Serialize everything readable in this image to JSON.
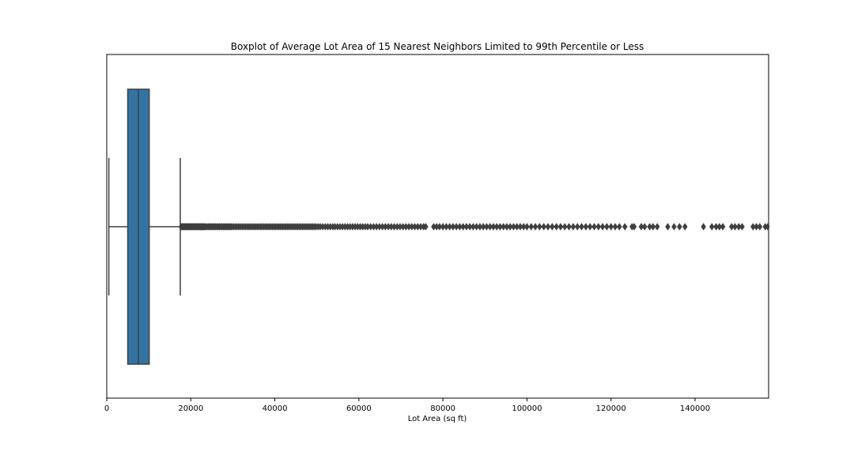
{
  "chart_data": {
    "type": "boxplot",
    "orientation": "horizontal",
    "title": "Boxplot of Average Lot Area of 15 Nearest Neighbors Limited to 99th Percentile or Less",
    "xlabel": "Lot Area (sq ft)",
    "ylabel": "",
    "xlim": [
      0,
      157500
    ],
    "xticks": [
      0,
      20000,
      40000,
      60000,
      80000,
      100000,
      120000,
      140000
    ],
    "xtick_labels": [
      "0",
      "20000",
      "40000",
      "60000",
      "80000",
      "100000",
      "120000",
      "140000"
    ],
    "grid": false,
    "box_color": "#3274a1",
    "line_color": "#3f3f3f",
    "stats": {
      "whisker_low": 500,
      "q1": 5000,
      "median": 7500,
      "q3": 10100,
      "whisker_high": 17500
    },
    "outliers": [
      17700,
      17900,
      18100,
      18300,
      18500,
      18700,
      18900,
      19100,
      19300,
      19500,
      19700,
      19900,
      20100,
      20300,
      20500,
      20700,
      20900,
      21100,
      21300,
      21500,
      21700,
      21900,
      22100,
      22300,
      22500,
      22700,
      22900,
      23100,
      23300,
      23500,
      23800,
      24100,
      24400,
      24700,
      25000,
      25300,
      25600,
      25900,
      26200,
      26500,
      26800,
      27100,
      27400,
      27700,
      28000,
      28300,
      28600,
      28900,
      29200,
      29500,
      29800,
      30200,
      30600,
      31000,
      31400,
      31800,
      32200,
      32600,
      33000,
      33400,
      33800,
      34200,
      34600,
      35000,
      35400,
      35800,
      36200,
      36600,
      37000,
      37400,
      37800,
      38200,
      38600,
      39000,
      39400,
      39800,
      40200,
      40600,
      41000,
      41400,
      41800,
      42200,
      42600,
      43000,
      43400,
      43800,
      44200,
      44600,
      45000,
      45400,
      45800,
      46200,
      46600,
      47000,
      47400,
      47800,
      48200,
      48600,
      49000,
      49400,
      49800,
      50300,
      50800,
      51400,
      52000,
      52600,
      53200,
      53800,
      54300,
      54900,
      55500,
      56100,
      56700,
      57300,
      57900,
      58500,
      59100,
      59700,
      60300,
      60900,
      61500,
      62100,
      62800,
      63500,
      64200,
      64900,
      65600,
      66300,
      67000,
      67700,
      68400,
      69100,
      69800,
      70500,
      71200,
      71900,
      72600,
      73300,
      74000,
      74700,
      75400,
      75900,
      77800,
      78500,
      79200,
      80000,
      80800,
      81600,
      82400,
      83200,
      84000,
      84800,
      85600,
      86400,
      87200,
      88000,
      88800,
      89600,
      90400,
      91200,
      92000,
      92800,
      93600,
      94400,
      95200,
      96000,
      96800,
      97600,
      98400,
      99200,
      100000,
      101000,
      102000,
      103000,
      104000,
      105000,
      106000,
      107000,
      108000,
      109000,
      110000,
      111000,
      112000,
      113000,
      114000,
      115000,
      116000,
      117000,
      118000,
      119000,
      120000,
      121000,
      122000,
      123300,
      125000,
      125500,
      127200,
      128000,
      129200,
      130000,
      131000,
      133500,
      135000,
      136300,
      137600,
      142000,
      144000,
      145000,
      145800,
      146600,
      148700,
      149500,
      150400,
      151200,
      153800,
      154600,
      155400,
      156700,
      157300
    ]
  }
}
